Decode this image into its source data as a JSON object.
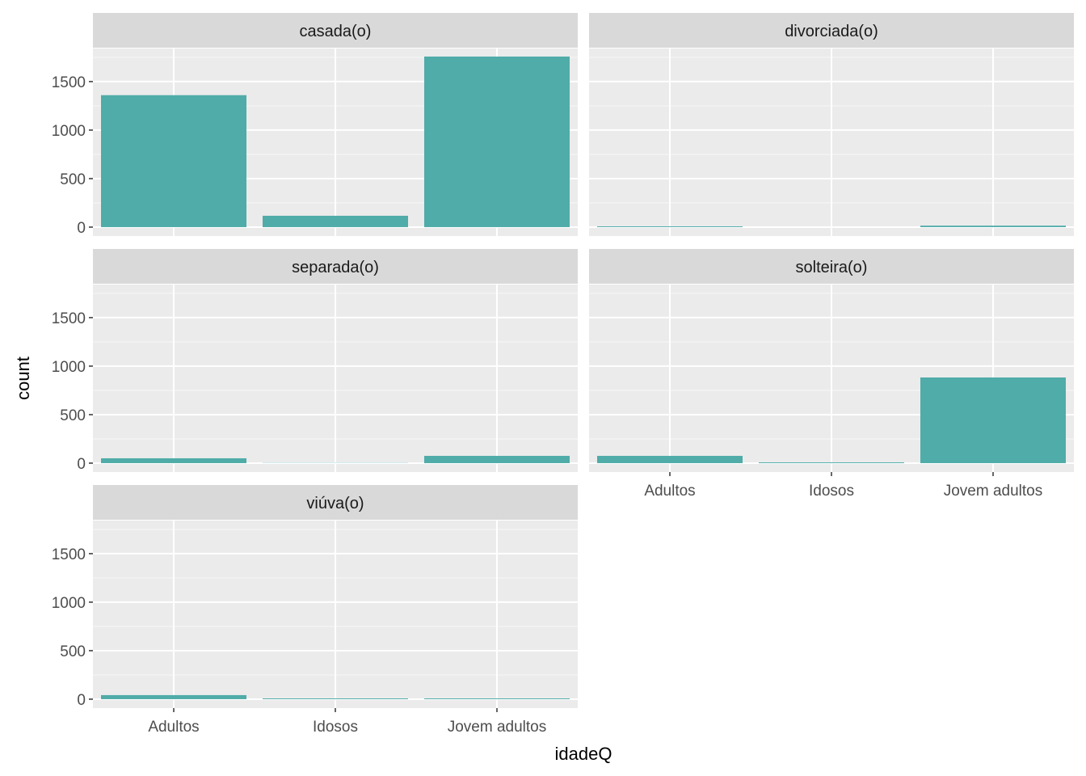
{
  "chart_data": {
    "type": "bar",
    "facet_type": "wrap",
    "xlabel": "idadeQ",
    "ylabel": "count",
    "categories": [
      "Adultos",
      "Idosos",
      "Jovem adultos"
    ],
    "ylim": [
      -92,
      1841
    ],
    "yticks": [
      0,
      500,
      1000,
      1500
    ],
    "grid": true,
    "bar_color": "#4FACA8",
    "panels": [
      {
        "name": "casada(o)",
        "values": [
          1360,
          117,
          1758
        ]
      },
      {
        "name": "divorciada(o)",
        "values": [
          8,
          0,
          15
        ]
      },
      {
        "name": "separada(o)",
        "values": [
          50,
          2,
          75
        ]
      },
      {
        "name": "solteira(o)",
        "values": [
          75,
          8,
          883
        ]
      },
      {
        "name": "viúva(o)",
        "values": [
          42,
          8,
          8
        ]
      }
    ]
  }
}
